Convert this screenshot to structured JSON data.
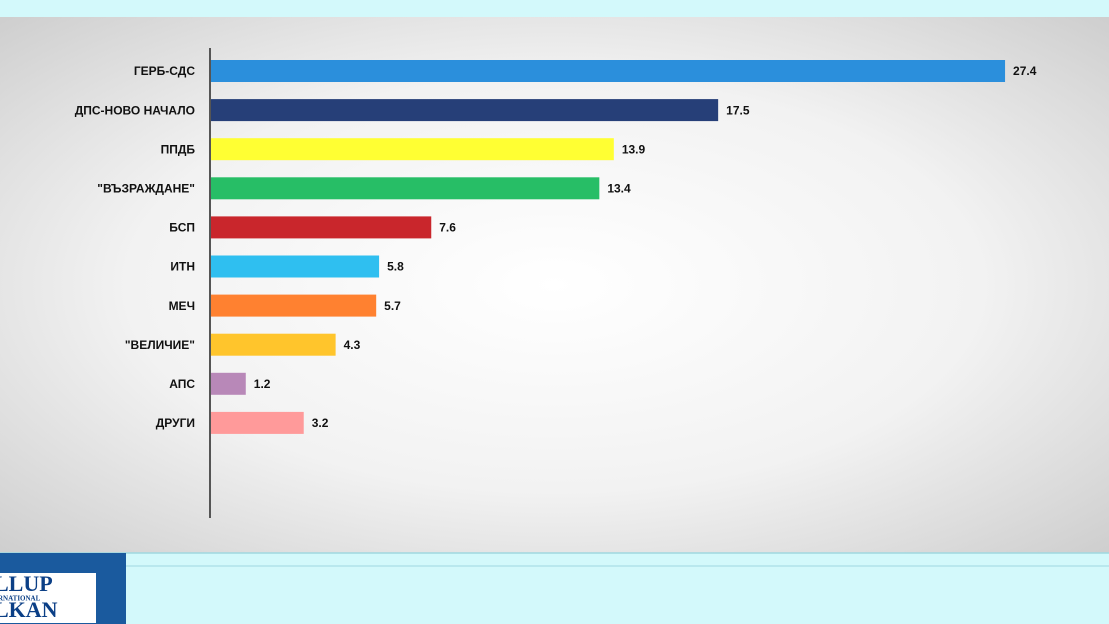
{
  "chart_data": {
    "type": "bar",
    "horizontal": true,
    "categories": [
      "ГЕРБ-СДС",
      "ДПС-НОВО НАЧАЛО",
      "ППДБ",
      "\"ВЪЗРАЖДАНЕ\"",
      "БСП",
      "ИТН",
      "МЕЧ",
      "\"ВЕЛИЧИЕ\"",
      "АПС",
      "ДРУГИ"
    ],
    "values": [
      27.4,
      17.5,
      13.9,
      13.4,
      7.6,
      5.8,
      5.7,
      4.3,
      1.2,
      3.2
    ],
    "colors": [
      "#2b8fdc",
      "#263f78",
      "#ffff33",
      "#27be66",
      "#c9262c",
      "#2fbff0",
      "#ff8130",
      "#ffc52c",
      "#b888b8",
      "#ff9a9a"
    ]
  },
  "logo": {
    "lines": [
      "LLUP",
      "RNATIONAL",
      "LKAN"
    ]
  }
}
